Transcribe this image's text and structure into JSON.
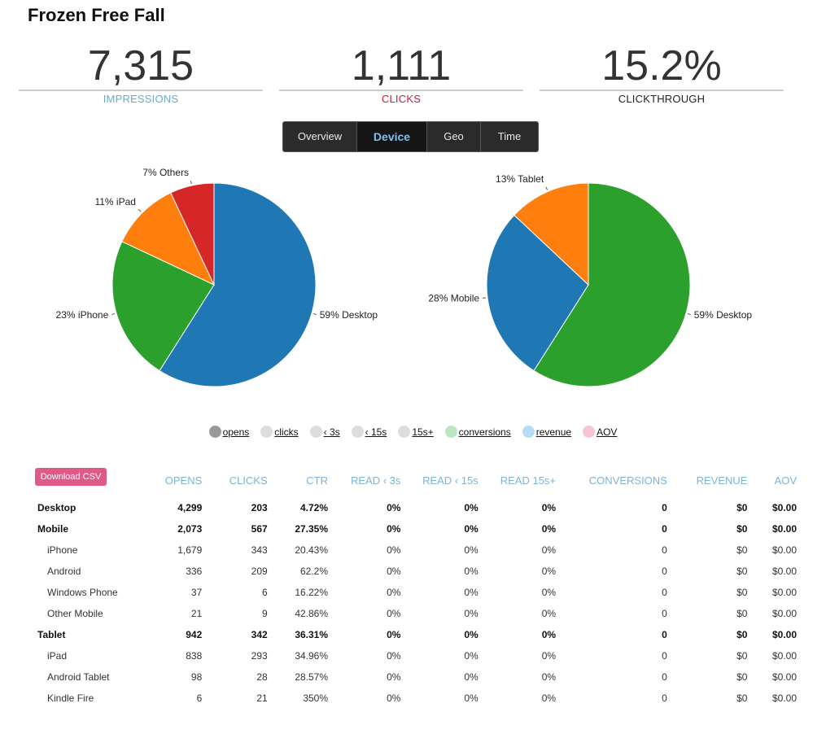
{
  "title": "Frozen Free Fall",
  "stats": {
    "impressions": {
      "value": "7,315",
      "label": "IMPRESSIONS"
    },
    "clicks": {
      "value": "1,111",
      "label": "CLICKS"
    },
    "clickthrough": {
      "value": "15.2%",
      "label": "CLICKTHROUGH"
    }
  },
  "tabs": [
    "Overview",
    "Device",
    "Geo",
    "Time"
  ],
  "active_tab": "Device",
  "chart_data": [
    {
      "type": "pie",
      "slices": [
        {
          "label": "59% Desktop",
          "value": 59,
          "color": "#1f77b4"
        },
        {
          "label": "23% iPhone",
          "value": 23,
          "color": "#2ca02c"
        },
        {
          "label": "11% iPad",
          "value": 11,
          "color": "#ff7f0e"
        },
        {
          "label": "7% Others",
          "value": 7,
          "color": "#d62728"
        }
      ]
    },
    {
      "type": "pie",
      "slices": [
        {
          "label": "59% Desktop",
          "value": 59,
          "color": "#2ca02c"
        },
        {
          "label": "28% Mobile",
          "value": 28,
          "color": "#1f77b4"
        },
        {
          "label": "13% Tablet",
          "value": 13,
          "color": "#ff7f0e"
        }
      ]
    }
  ],
  "legend": [
    {
      "label": "opens",
      "color": "#999999"
    },
    {
      "label": "clicks",
      "color": "#dddddd"
    },
    {
      "label": "‹ 3s",
      "color": "#dddddd"
    },
    {
      "label": "‹ 15s",
      "color": "#dddddd"
    },
    {
      "label": "15s+",
      "color": "#dddddd"
    },
    {
      "label": "conversions",
      "color": "#b9e8c0"
    },
    {
      "label": "revenue",
      "color": "#b3dcf5"
    },
    {
      "label": "AOV",
      "color": "#f7c4d6"
    }
  ],
  "download_csv": "Download CSV",
  "table": {
    "columns": [
      "OPENS",
      "CLICKS",
      "CTR",
      "READ ‹ 3s",
      "READ ‹ 15s",
      "READ 15s+",
      "CONVERSIONS",
      "REVENUE",
      "AOV"
    ],
    "rows": [
      {
        "name": "Desktop",
        "group": true,
        "cells": [
          "4,299",
          "203",
          "4.72%",
          "0%",
          "0%",
          "0%",
          "0",
          "$0",
          "$0.00"
        ]
      },
      {
        "name": "Mobile",
        "group": true,
        "cells": [
          "2,073",
          "567",
          "27.35%",
          "0%",
          "0%",
          "0%",
          "0",
          "$0",
          "$0.00"
        ]
      },
      {
        "name": "iPhone",
        "group": false,
        "cells": [
          "1,679",
          "343",
          "20.43%",
          "0%",
          "0%",
          "0%",
          "0",
          "$0",
          "$0.00"
        ]
      },
      {
        "name": "Android",
        "group": false,
        "cells": [
          "336",
          "209",
          "62.2%",
          "0%",
          "0%",
          "0%",
          "0",
          "$0",
          "$0.00"
        ]
      },
      {
        "name": "Windows Phone",
        "group": false,
        "cells": [
          "37",
          "6",
          "16.22%",
          "0%",
          "0%",
          "0%",
          "0",
          "$0",
          "$0.00"
        ]
      },
      {
        "name": "Other Mobile",
        "group": false,
        "cells": [
          "21",
          "9",
          "42.86%",
          "0%",
          "0%",
          "0%",
          "0",
          "$0",
          "$0.00"
        ]
      },
      {
        "name": "Tablet",
        "group": true,
        "cells": [
          "942",
          "342",
          "36.31%",
          "0%",
          "0%",
          "0%",
          "0",
          "$0",
          "$0.00"
        ]
      },
      {
        "name": "iPad",
        "group": false,
        "cells": [
          "838",
          "293",
          "34.96%",
          "0%",
          "0%",
          "0%",
          "0",
          "$0",
          "$0.00"
        ]
      },
      {
        "name": "Android Tablet",
        "group": false,
        "cells": [
          "98",
          "28",
          "28.57%",
          "0%",
          "0%",
          "0%",
          "0",
          "$0",
          "$0.00"
        ]
      },
      {
        "name": "Kindle Fire",
        "group": false,
        "cells": [
          "6",
          "21",
          "350%",
          "0%",
          "0%",
          "0%",
          "0",
          "$0",
          "$0.00"
        ]
      }
    ]
  }
}
